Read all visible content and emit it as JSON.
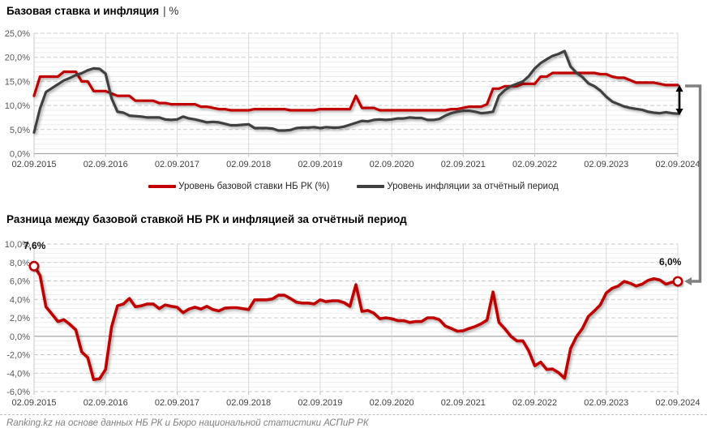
{
  "charts": [
    {
      "title": "Базовая ставка и инфляция",
      "title_suffix": "| %",
      "type": "line",
      "ylim": [
        0,
        25
      ],
      "y_major_step": 5,
      "y_minor_step": 1,
      "y_tick_labels": [
        "25,0%",
        "20,0%",
        "15,0%",
        "10,0%",
        "5,0%",
        "0,0%"
      ],
      "x_tick_labels": [
        "02.09.2015",
        "02.09.2016",
        "02.09.2017",
        "02.09.2018",
        "02.09.2019",
        "02.09.2020",
        "02.09.2021",
        "02.09.2022",
        "02.09.2023",
        "02.09.2024"
      ],
      "x_start": "02.09.2015",
      "x_end": "02.09.2024",
      "points_per_series": 109,
      "grid": true,
      "legend_position": "bottom",
      "series": [
        {
          "name": "Уровень базовой ставки НБ РК (%)",
          "color": "#C00000",
          "values": [
            12,
            16,
            16,
            16,
            16,
            17,
            17,
            17,
            15,
            15,
            13,
            13,
            13,
            12.5,
            12,
            12,
            12,
            11,
            11,
            11,
            11,
            10.5,
            10.5,
            10.25,
            10.25,
            10.25,
            10.25,
            10.25,
            9.75,
            9.75,
            9.5,
            9.25,
            9.25,
            9,
            9,
            9,
            9,
            9.25,
            9.25,
            9.25,
            9.25,
            9.25,
            9.25,
            9,
            9,
            9,
            9,
            9,
            9.25,
            9.25,
            9.25,
            9.25,
            9.25,
            9.25,
            12,
            9.5,
            9.5,
            9.5,
            9,
            9,
            9,
            9,
            9,
            9,
            9,
            9,
            9,
            9,
            9,
            9,
            9.25,
            9.25,
            9.5,
            9.75,
            9.75,
            9.75,
            10.25,
            13.5,
            13.5,
            14,
            14,
            14,
            14.5,
            14.5,
            14.5,
            16,
            16,
            16.75,
            16.75,
            16.75,
            16.75,
            16.75,
            16.75,
            16.75,
            16.75,
            16.5,
            16.5,
            16,
            15.75,
            15.75,
            15.25,
            14.75,
            14.75,
            14.75,
            14.75,
            14.5,
            14.25,
            14.25,
            14.25
          ]
        },
        {
          "name": "Уровень инфляции за отчётный период",
          "color": "#404040",
          "values": [
            4.4,
            9.4,
            12.8,
            13.6,
            14.4,
            15.2,
            15.7,
            16.3,
            16.7,
            17.3,
            17.7,
            17.6,
            16.6,
            11.5,
            8.7,
            8.5,
            7.9,
            7.8,
            7.7,
            7.5,
            7.5,
            7.5,
            7.1,
            7.0,
            7.1,
            7.7,
            7.3,
            7.1,
            6.8,
            6.5,
            6.6,
            6.5,
            6.2,
            5.9,
            5.9,
            6.0,
            6.1,
            5.3,
            5.3,
            5.3,
            5.2,
            4.8,
            4.8,
            4.9,
            5.3,
            5.4,
            5.4,
            5.5,
            5.3,
            5.5,
            5.4,
            5.4,
            5.6,
            6.0,
            6.4,
            6.8,
            6.7,
            7.0,
            7.1,
            7.0,
            7.1,
            7.3,
            7.3,
            7.5,
            7.4,
            7.4,
            7.0,
            7.0,
            7.2,
            7.9,
            8.4,
            8.7,
            8.9,
            8.9,
            8.7,
            8.4,
            8.5,
            8.7,
            12.0,
            13.2,
            14.0,
            14.5,
            15.0,
            16.1,
            17.7,
            18.8,
            19.6,
            20.3,
            20.7,
            21.3,
            18.1,
            16.8,
            15.9,
            14.6,
            14.0,
            13.1,
            11.8,
            10.8,
            10.3,
            9.8,
            9.5,
            9.3,
            9.1,
            8.7,
            8.5,
            8.4,
            8.6,
            8.4,
            8.3
          ]
        }
      ]
    },
    {
      "title": "Разница между базовой ставкой НБ РК и инфляцией за отчётный период",
      "title_suffix": "",
      "type": "line",
      "ylim": [
        -6,
        10
      ],
      "y_major_step": 2,
      "y_minor_step": 0.5,
      "y_tick_labels": [
        "10,0%",
        "8,0%",
        "6,0%",
        "4,0%",
        "2,0%",
        "0,0%",
        "-2,0%",
        "-4,0%",
        "-6,0%"
      ],
      "x_tick_labels": [
        "02.09.2015",
        "02.09.2016",
        "02.09.2017",
        "02.09.2018",
        "02.09.2019",
        "02.09.2020",
        "02.09.2021",
        "02.09.2022",
        "02.09.2023",
        "02.09.2024"
      ],
      "x_start": "02.09.2015",
      "x_end": "02.09.2024",
      "points_per_series": 109,
      "grid": true,
      "legend_position": "none",
      "annotations": {
        "start_label": "7,6%",
        "end_label": "6,0%",
        "marker_style": "white-circle-red-ring"
      },
      "series": [
        {
          "name": "Разница между базовой ставкой и инфляцией",
          "color": "#C00000",
          "values": [
            7.6,
            6.6,
            3.2,
            2.4,
            1.6,
            1.8,
            1.3,
            0.7,
            -1.7,
            -2.3,
            -4.7,
            -4.6,
            -3.6,
            1.0,
            3.3,
            3.5,
            4.1,
            3.2,
            3.3,
            3.5,
            3.5,
            3.0,
            3.4,
            3.25,
            3.15,
            2.55,
            2.95,
            3.15,
            2.95,
            3.25,
            2.9,
            2.75,
            3.05,
            3.1,
            3.1,
            3.0,
            2.9,
            3.95,
            3.95,
            3.95,
            4.05,
            4.45,
            4.45,
            4.1,
            3.7,
            3.6,
            3.6,
            3.5,
            3.95,
            3.75,
            3.85,
            3.85,
            3.65,
            3.25,
            5.6,
            2.7,
            2.8,
            2.5,
            1.9,
            2.0,
            1.9,
            1.7,
            1.7,
            1.5,
            1.6,
            1.6,
            2.0,
            2.0,
            1.8,
            1.1,
            0.85,
            0.55,
            0.6,
            0.85,
            1.05,
            1.35,
            1.75,
            4.8,
            1.5,
            0.8,
            0.0,
            -0.5,
            -0.5,
            -1.6,
            -3.2,
            -2.8,
            -3.6,
            -3.55,
            -3.95,
            -4.55,
            -1.35,
            -0.05,
            0.85,
            2.15,
            2.75,
            3.4,
            4.7,
            5.2,
            5.45,
            5.95,
            5.75,
            5.45,
            5.65,
            6.05,
            6.25,
            6.1,
            5.65,
            5.85,
            5.95
          ]
        }
      ]
    }
  ],
  "annotation_colors": {
    "gap_arrow": "#000000",
    "connector_arrow": "#808080"
  },
  "footer": {
    "text": "Ranking.kz на основе данных НБ РК и Бюро национальной статистики АСПиР РК"
  }
}
